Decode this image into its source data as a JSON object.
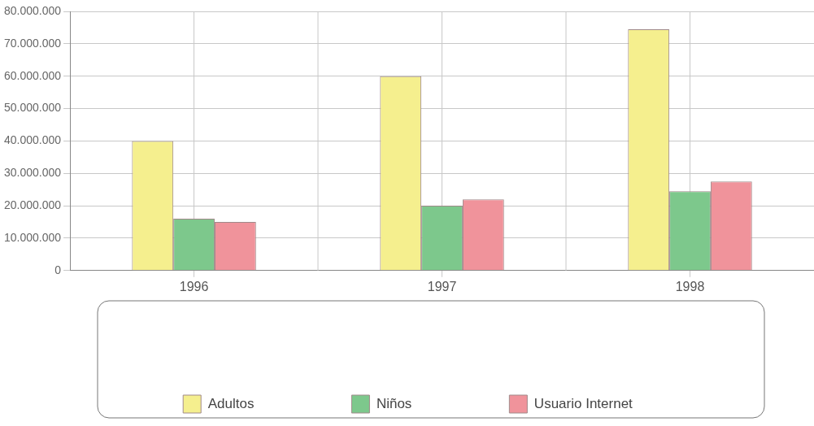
{
  "chart_data": {
    "type": "bar",
    "categories": [
      "1996",
      "1997",
      "1998"
    ],
    "series": [
      {
        "name": "Adultos",
        "color": "#f5ef8e",
        "values": [
          40000000,
          60000000,
          74500000
        ]
      },
      {
        "name": "Niños",
        "color": "#7dc88c",
        "values": [
          16000000,
          20000000,
          24500000
        ]
      },
      {
        "name": "Usuario Internet",
        "color": "#f0939b",
        "values": [
          15000000,
          22000000,
          27500000
        ]
      }
    ],
    "ylim": [
      0,
      80000000
    ],
    "yticks": [
      0,
      {
        "value": 10000000,
        "label": "10.000.000"
      },
      {
        "value": 20000000,
        "label": "20.000.000"
      },
      {
        "value": 30000000,
        "label": "30.000.000"
      },
      {
        "value": 40000000,
        "label": "40.000.000"
      },
      {
        "value": 50000000,
        "label": "50.000.000"
      },
      {
        "value": 60000000,
        "label": "60.000.000"
      },
      {
        "value": 70000000,
        "label": "70.000.000"
      },
      {
        "value": 80000000,
        "label": "80.000.000"
      }
    ],
    "grid": true,
    "legend": "bottom"
  }
}
